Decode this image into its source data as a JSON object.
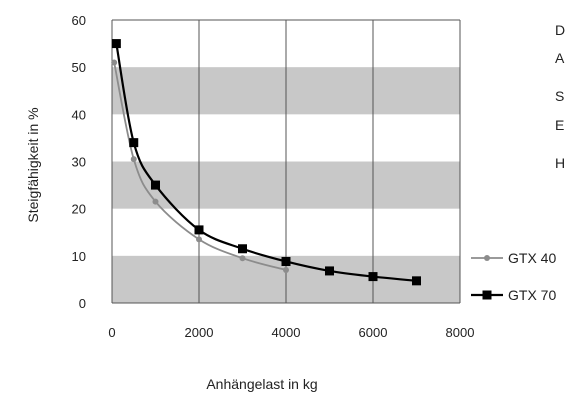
{
  "chart_data": {
    "type": "line",
    "xlabel": "Anhängelast in kg",
    "ylabel": "Steigfähigkeit in %",
    "xlim": [
      0,
      8000
    ],
    "ylim": [
      0,
      60
    ],
    "x_ticks": [
      "0",
      "2000",
      "4000",
      "6000",
      "8000"
    ],
    "y_ticks": [
      "0",
      "10",
      "20",
      "30",
      "40",
      "50",
      "60"
    ],
    "grid": "vertical lines at 2000-kg steps; alternating grey horizontal bands every 10 %",
    "legend_position": "right",
    "series": [
      {
        "name": "GTX 40",
        "marker": "circle",
        "color": "#8c8c8c",
        "x": [
          50,
          500,
          1000,
          2000,
          3000,
          4000
        ],
        "y": [
          51,
          30.5,
          21.5,
          13.5,
          9.5,
          7
        ]
      },
      {
        "name": "GTX 70",
        "marker": "square",
        "color": "#000000",
        "x": [
          100,
          500,
          1000,
          2000,
          3000,
          4000,
          5000,
          6000,
          7000
        ],
        "y": [
          55,
          34,
          25,
          15.5,
          11.5,
          8.8,
          6.8,
          5.6,
          4.7
        ]
      }
    ]
  },
  "side_text": [
    "D",
    "A",
    "S",
    "E",
    "H"
  ],
  "colors": {
    "band": "#c8c8c8",
    "grid": "#555555"
  }
}
